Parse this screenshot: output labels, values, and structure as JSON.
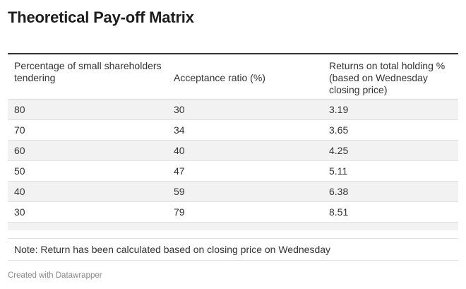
{
  "title": "Theoretical Pay-off Matrix",
  "chart_data": {
    "type": "table",
    "columns": [
      "Percentage of small shareholders tendering",
      "Acceptance ratio (%)",
      "Returns on total holding % (based on Wednesday closing price)"
    ],
    "rows": [
      [
        "80",
        "30",
        "3.19"
      ],
      [
        "70",
        "34",
        "3.65"
      ],
      [
        "60",
        "40",
        "4.25"
      ],
      [
        "50",
        "47",
        "5.11"
      ],
      [
        "40",
        "59",
        "6.38"
      ],
      [
        "30",
        "79",
        "8.51"
      ]
    ]
  },
  "note": "Note: Return has been calculated based on closing price on Wednesday",
  "credit": "Created with Datawrapper"
}
